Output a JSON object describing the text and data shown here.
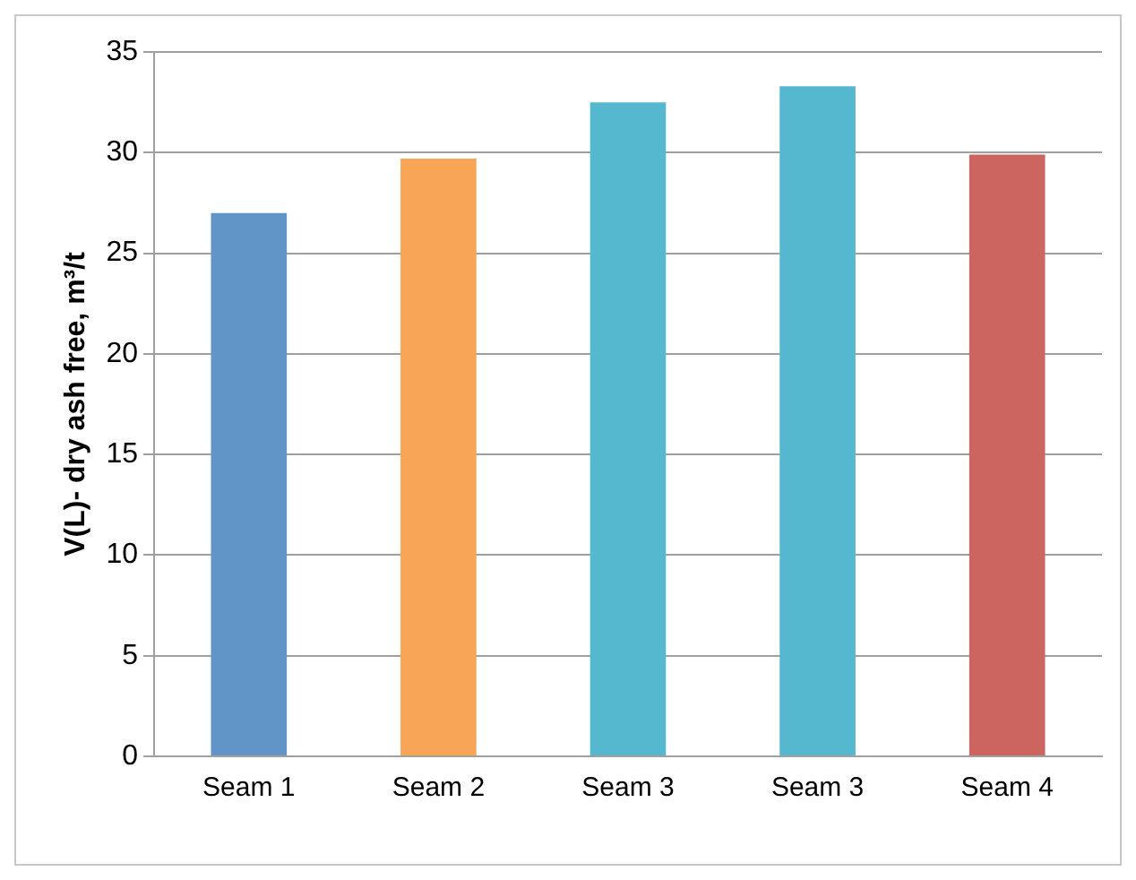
{
  "chart_data": {
    "type": "bar",
    "ylabel": "V(L)- dry ash free, m³/t",
    "categories": [
      "Seam 1",
      "Seam 2",
      "Seam 3",
      "Seam 3",
      "Seam 4"
    ],
    "values": [
      27.0,
      29.7,
      32.5,
      33.3,
      29.9
    ],
    "colors": [
      "#6194c7",
      "#f8a557",
      "#56b8cf",
      "#56b8cf",
      "#cc6560"
    ],
    "ylim": [
      0,
      35
    ],
    "yticks": [
      0,
      5,
      10,
      15,
      20,
      25,
      30,
      35
    ],
    "grid": "y",
    "legend": false
  }
}
